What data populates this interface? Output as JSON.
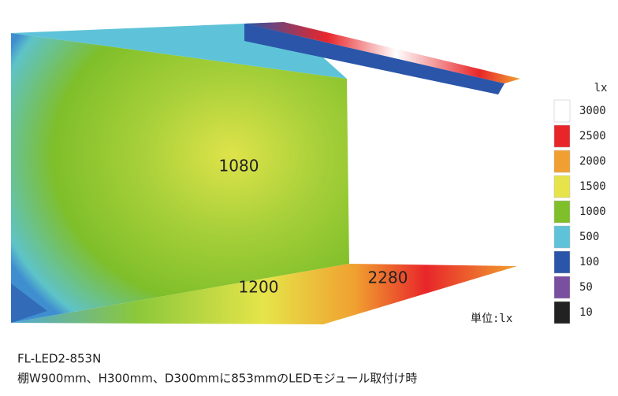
{
  "figure": {
    "annotations": [
      "1080",
      "1200",
      "2280"
    ],
    "unit_note": "単位:lx",
    "legend": {
      "unit": "lx",
      "items": [
        {
          "label": "3000",
          "color": "#ffffff"
        },
        {
          "label": "2500",
          "color": "#e8262a"
        },
        {
          "label": "2000",
          "color": "#f0a030"
        },
        {
          "label": "1500",
          "color": "#e6e44a"
        },
        {
          "label": "1000",
          "color": "#7fbf2a"
        },
        {
          "label": "500",
          "color": "#5ec3d8"
        },
        {
          "label": "100",
          "color": "#2a55a8"
        },
        {
          "label": "50",
          "color": "#7a4ea0"
        },
        {
          "label": "10",
          "color": "#222222"
        }
      ]
    }
  },
  "caption": {
    "model": "FL-LED2-853N",
    "description": "棚W900mm、H300mm、D300mmに853mmのLEDモジュール取付け時"
  }
}
